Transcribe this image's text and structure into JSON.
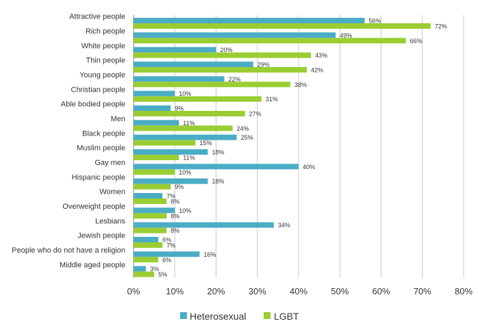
{
  "chart_data": {
    "type": "bar",
    "orientation": "horizontal",
    "title": "",
    "xlabel": "",
    "ylabel": "",
    "xlim": [
      0,
      80
    ],
    "x_ticks": [
      "0%",
      "10%",
      "20%",
      "30%",
      "40%",
      "50%",
      "60%",
      "70%",
      "80%"
    ],
    "grid": "vertical",
    "legend": "bottom",
    "categories": [
      "Attractive people",
      "Rich people",
      "White people",
      "Thin people",
      "Young people",
      "Christian people",
      "Able bodied people",
      "Men",
      "Black people",
      "Muslim people",
      "Gay men",
      "Hispanic people",
      "Women",
      "Overweight people",
      "Lesbians",
      "Jewish people",
      "People who do not have a religion",
      "Middle aged people"
    ],
    "series": [
      {
        "name": "Heterosexual",
        "color": "#4bacc6",
        "values": [
          56,
          49,
          20,
          29,
          22,
          10,
          9,
          11,
          25,
          18,
          40,
          18,
          7,
          10,
          34,
          6,
          16,
          3
        ]
      },
      {
        "name": "LGBT",
        "color": "#9acd32",
        "values": [
          72,
          66,
          43,
          42,
          38,
          31,
          27,
          24,
          15,
          11,
          10,
          9,
          8,
          8,
          8,
          7,
          6,
          5
        ]
      }
    ]
  }
}
